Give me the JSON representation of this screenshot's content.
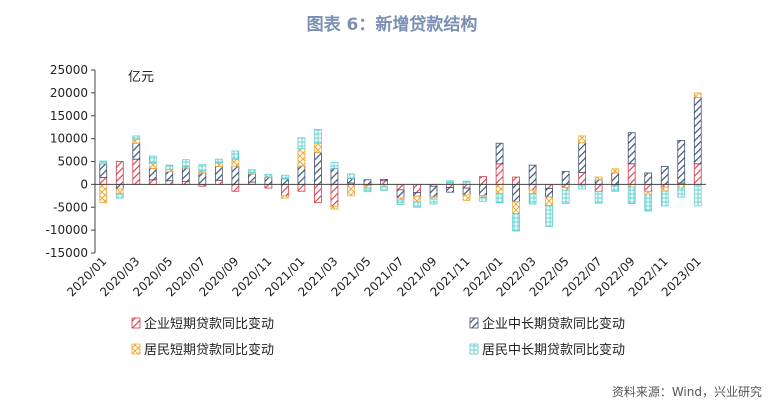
{
  "title": "图表 6：新增贷款结构",
  "source": "资料来源：Wind，兴业研究",
  "colors": {
    "corp_short": "#d63a4c",
    "corp_long": "#3e5270",
    "res_short": "#f2a93a",
    "res_long": "#5fd0d3"
  },
  "chart_data": {
    "type": "bar",
    "stacked": true,
    "unit_label": "亿元",
    "ylim": [
      -15000,
      25000
    ],
    "yticks": [
      -15000,
      -10000,
      -5000,
      0,
      5000,
      10000,
      15000,
      20000,
      25000
    ],
    "categories": [
      "2020/01",
      "2020/02",
      "2020/03",
      "2020/04",
      "2020/05",
      "2020/06",
      "2020/07",
      "2020/08",
      "2020/09",
      "2020/10",
      "2020/11",
      "2020/12",
      "2021/01",
      "2021/02",
      "2021/03",
      "2021/04",
      "2021/05",
      "2021/06",
      "2021/07",
      "2021/08",
      "2021/09",
      "2021/10",
      "2021/11",
      "2021/12",
      "2022/01",
      "2022/02",
      "2022/03",
      "2022/04",
      "2022/05",
      "2022/06",
      "2022/07",
      "2022/08",
      "2022/09",
      "2022/10",
      "2022/11",
      "2022/12",
      "2023/01"
    ],
    "xtick_labels": [
      "2020/01",
      "2020/03",
      "2020/05",
      "2020/07",
      "2020/09",
      "2020/11",
      "2021/01",
      "2021/03",
      "2021/05",
      "2021/07",
      "2021/09",
      "2021/11",
      "2022/01",
      "2022/03",
      "2022/05",
      "2022/07",
      "2022/09",
      "2022/11",
      "2023/01"
    ],
    "series": [
      {
        "name": "企业短期贷款同比变动",
        "values": [
          1500,
          5000,
          5500,
          1000,
          800,
          600,
          -400,
          900,
          -1500,
          500,
          -800,
          -2500,
          -1500,
          -4000,
          -4800,
          300,
          -300,
          800,
          -1200,
          -1800,
          -400,
          -700,
          -800,
          1700,
          4500,
          1600,
          -1200,
          -900,
          -700,
          2600,
          -1600,
          -300,
          4500,
          -1600,
          -600,
          300,
          4500
        ]
      },
      {
        "name": "企业中长期贷款同比变动",
        "values": [
          3000,
          -1000,
          3500,
          2500,
          2000,
          3000,
          2500,
          3000,
          4000,
          1800,
          1500,
          1200,
          4000,
          7000,
          3500,
          1000,
          1000,
          300,
          -1800,
          -800,
          -2400,
          -1000,
          -1500,
          -2400,
          4500,
          -3800,
          4200,
          -1900,
          2800,
          6500,
          1000,
          2500,
          6800,
          2500,
          3900,
          9300,
          14500
        ]
      },
      {
        "name": "居民短期贷款同比变动",
        "values": [
          -4000,
          -1000,
          800,
          1200,
          500,
          300,
          400,
          800,
          1500,
          300,
          300,
          -500,
          3800,
          2000,
          -600,
          -2500,
          -500,
          -500,
          -400,
          -1200,
          -400,
          300,
          -1200,
          -400,
          -2000,
          -2600,
          -800,
          -1800,
          -600,
          1500,
          600,
          900,
          -600,
          -700,
          -900,
          -800,
          1000
        ]
      },
      {
        "name": "居民中长期贷款同比变动",
        "values": [
          600,
          -1000,
          800,
          1500,
          900,
          1500,
          1400,
          800,
          1800,
          600,
          400,
          800,
          2400,
          3000,
          1300,
          1000,
          -800,
          -800,
          -1000,
          -1200,
          -1100,
          500,
          700,
          -900,
          -2000,
          -3800,
          -2300,
          -4600,
          -2900,
          -1000,
          -2500,
          -1200,
          -3600,
          -3500,
          -3200,
          -2000,
          -4700
        ]
      }
    ]
  }
}
